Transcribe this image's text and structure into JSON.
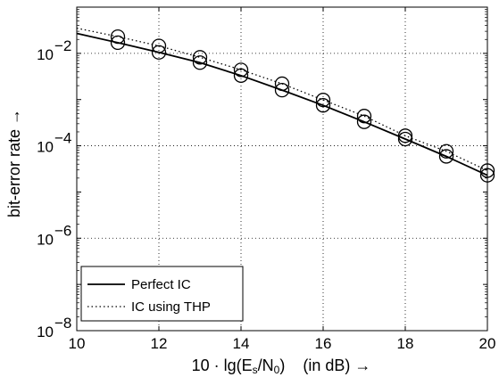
{
  "chart_data": {
    "type": "line",
    "title": "",
    "xlabel_parts": {
      "pre": "10 · lg(E",
      "sub1": "s",
      "mid": "/N",
      "sub2": "0",
      "post": ")    (in dB) →"
    },
    "ylabel": "bit-error rate →",
    "xlim": [
      10,
      20
    ],
    "ylim_log10": [
      -8,
      -1
    ],
    "y_scale": "log",
    "grid": true,
    "grid_style": "dotted",
    "legend_position": "bottom-left",
    "x_ticks": [
      10,
      12,
      14,
      16,
      18,
      20
    ],
    "x_tick_labels": [
      "10",
      "12",
      "14",
      "16",
      "18",
      "20"
    ],
    "y_ticks_log10": [
      -8,
      -6,
      -4,
      -2
    ],
    "y_tick_labels": [
      {
        "base": "10",
        "exp": "−8"
      },
      {
        "base": "10",
        "exp": "−6"
      },
      {
        "base": "10",
        "exp": "−4"
      },
      {
        "base": "10",
        "exp": "−2"
      }
    ],
    "series": [
      {
        "name": "Perfect IC",
        "line_style": "solid",
        "x": [
          10,
          11,
          12,
          13,
          14,
          15,
          16,
          17,
          18,
          19,
          20
        ],
        "y": [
          0.027,
          0.017,
          0.0105,
          0.0063,
          0.0033,
          0.0016,
          0.00075,
          0.00033,
          0.00014,
          5.9e-05,
          2.3e-05
        ],
        "marker_x": [
          11,
          12,
          13,
          14,
          15,
          16,
          17,
          18,
          19,
          20
        ],
        "marker_y": [
          0.017,
          0.0105,
          0.0063,
          0.0033,
          0.0016,
          0.00075,
          0.00033,
          0.00014,
          5.9e-05,
          2.3e-05
        ]
      },
      {
        "name": "IC using THP",
        "line_style": "dotted",
        "x": [
          10,
          11,
          12,
          13,
          14,
          15,
          16,
          17,
          18,
          19,
          20
        ],
        "y": [
          0.035,
          0.023,
          0.0145,
          0.0082,
          0.0044,
          0.0022,
          0.00098,
          0.00044,
          0.000165,
          7.6e-05,
          2.9e-05
        ],
        "marker_x": [
          11,
          12,
          13,
          14,
          15,
          16,
          17,
          18,
          19,
          20
        ],
        "marker_y": [
          0.023,
          0.0145,
          0.0082,
          0.0044,
          0.0022,
          0.00098,
          0.00044,
          0.000165,
          7.6e-05,
          2.9e-05
        ]
      }
    ]
  }
}
